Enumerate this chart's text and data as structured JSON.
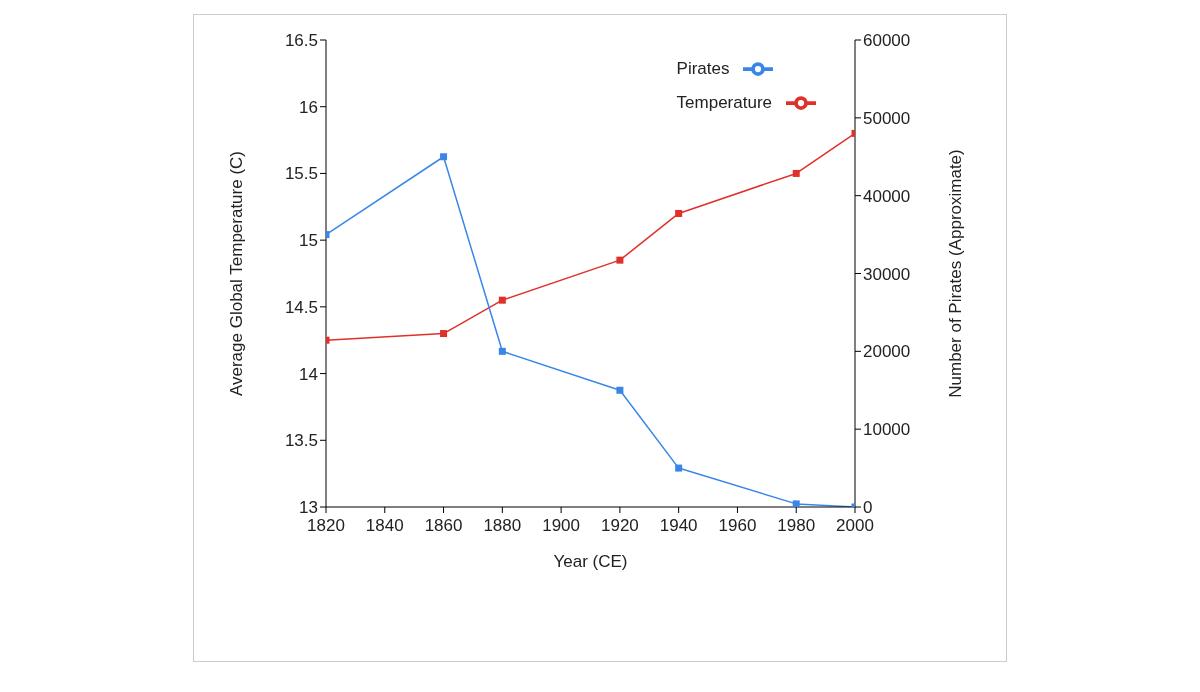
{
  "chart_data": {
    "type": "line",
    "xlabel": "Year (CE)",
    "ylabel": "Average Global Temperature (C)",
    "y2label": "Number of Pirates (Approximate)",
    "x": [
      1820,
      1860,
      1880,
      1920,
      1940,
      1980,
      2000
    ],
    "series": [
      {
        "name": "Temperature",
        "color": "#e0302a",
        "values": [
          14.25,
          14.3,
          14.55,
          14.85,
          15.2,
          15.5,
          15.8
        ]
      },
      {
        "name": "Pirates",
        "color": "#3a86e8",
        "axis": "y2",
        "values": [
          35000,
          45000,
          20000,
          15000,
          5000,
          400,
          0
        ]
      }
    ],
    "xlim": [
      1820,
      2000
    ],
    "xticks": [
      1820,
      1840,
      1860,
      1880,
      1900,
      1920,
      1940,
      1960,
      1980,
      2000
    ],
    "ylim": [
      13,
      16.5
    ],
    "yticks": [
      13,
      13.5,
      14,
      14.5,
      15,
      15.5,
      16,
      16.5
    ],
    "y2lim": [
      0,
      60000
    ],
    "y2ticks": [
      0,
      10000,
      20000,
      30000,
      40000,
      50000,
      60000
    ],
    "grid": false,
    "legend": "top right",
    "marker": "square",
    "line_style": "solid"
  }
}
